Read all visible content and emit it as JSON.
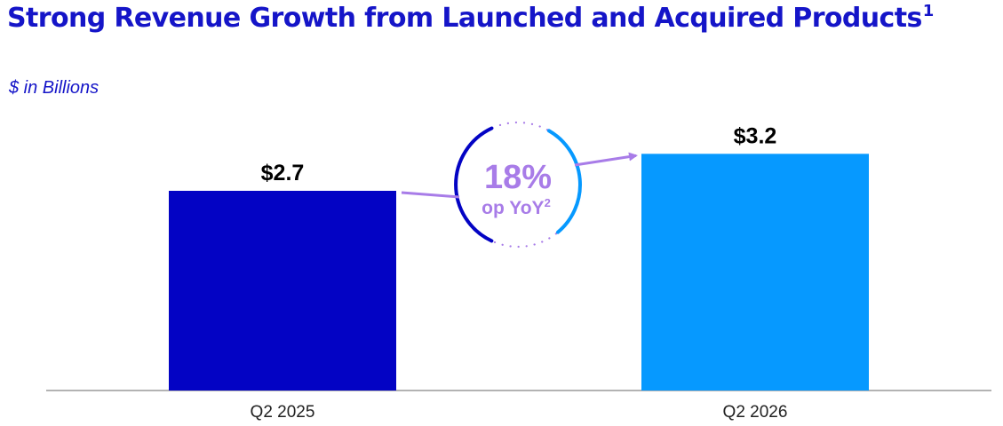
{
  "header": {
    "title": "Strong Revenue Growth from Launched and Acquired Products",
    "title_footnote": "1",
    "subtitle": "$ in Billions"
  },
  "chart_data": {
    "type": "bar",
    "categories": [
      "Q2 2025",
      "Q2 2026"
    ],
    "values": [
      2.7,
      3.2
    ],
    "value_labels": [
      "$2.7",
      "$3.2"
    ],
    "colors": [
      "#0303c4",
      "#0699ff"
    ],
    "ylim": [
      0,
      3.6
    ],
    "grid": false,
    "annotation": {
      "value": "18%",
      "text": "op YoY",
      "footnote": "2",
      "color": "#a87ce8",
      "arc_colors": [
        "#0303c4",
        "#0699ff"
      ]
    }
  }
}
